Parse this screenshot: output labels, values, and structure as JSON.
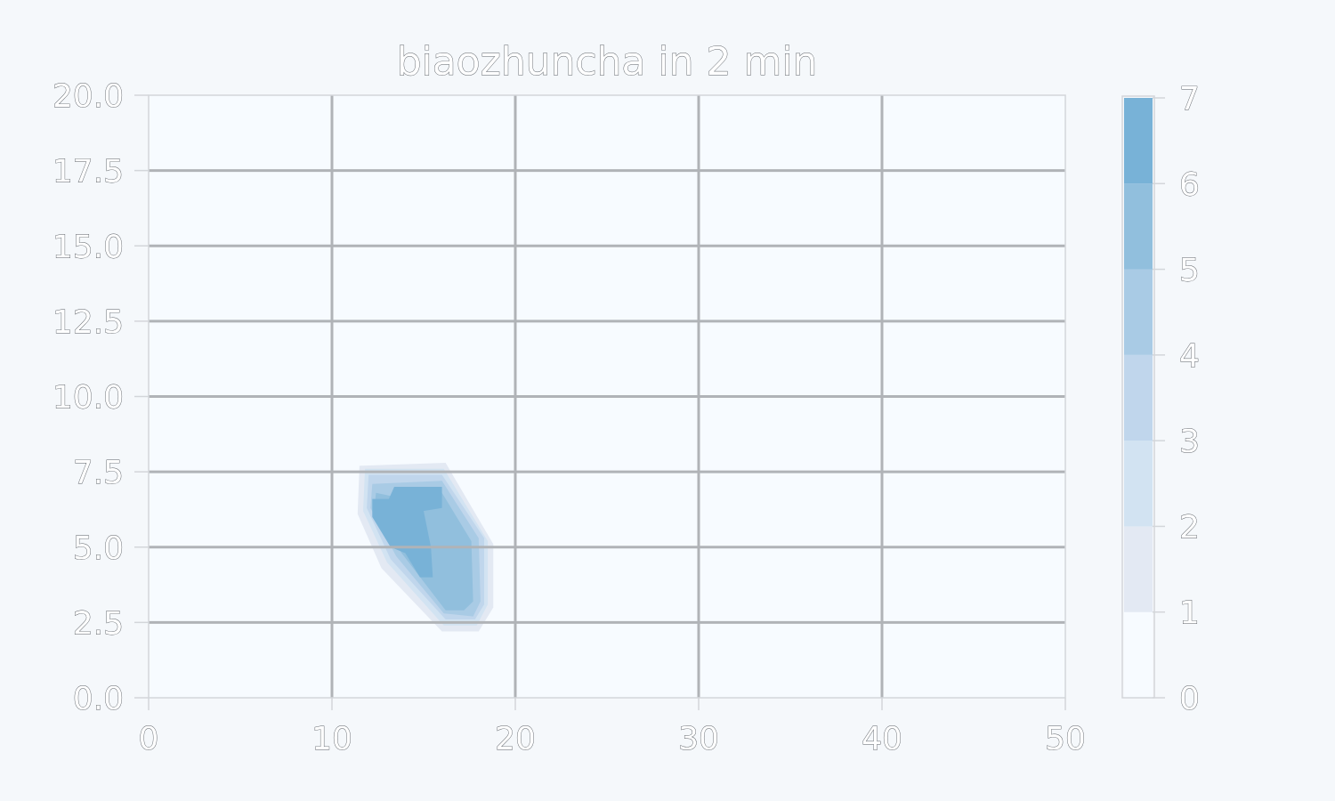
{
  "chart_data": {
    "type": "contour",
    "title": "biaozhuncha in 2 min",
    "xlabel": "",
    "ylabel": "",
    "xlim": [
      0,
      50
    ],
    "ylim": [
      0,
      20
    ],
    "x_ticks": [
      "0",
      "10",
      "20",
      "30",
      "40",
      "50"
    ],
    "y_ticks": [
      "0.0",
      "2.5",
      "5.0",
      "7.5",
      "10.0",
      "12.5",
      "15.0",
      "17.5",
      "20.0"
    ],
    "grid": true,
    "colorbar": {
      "ticks": [
        "0",
        "1",
        "2",
        "3",
        "4",
        "5",
        "6",
        "7"
      ],
      "levels": [
        0,
        1,
        2,
        3,
        4,
        5,
        6,
        7
      ],
      "colors": [
        "#f7fbff",
        "#e3e9f3",
        "#d2e3f2",
        "#c0d6ec",
        "#a9cbe5",
        "#91bfdd",
        "#78b2d7"
      ]
    },
    "regions": [
      {
        "level": 1,
        "points": [
          [
            11.5,
            7.7
          ],
          [
            16.2,
            7.8
          ],
          [
            18.8,
            5.1
          ],
          [
            18.8,
            3.0
          ],
          [
            18.0,
            2.2
          ],
          [
            16.0,
            2.2
          ],
          [
            12.7,
            4.3
          ],
          [
            11.4,
            6.1
          ]
        ]
      },
      {
        "level": 2,
        "points": [
          [
            11.8,
            7.6
          ],
          [
            16.1,
            7.6
          ],
          [
            18.5,
            5.2
          ],
          [
            18.5,
            3.1
          ],
          [
            17.9,
            2.4
          ],
          [
            16.1,
            2.4
          ],
          [
            13.0,
            4.5
          ],
          [
            11.7,
            6.2
          ]
        ]
      },
      {
        "level": 3,
        "points": [
          [
            12.0,
            7.4
          ],
          [
            16.0,
            7.4
          ],
          [
            18.3,
            5.3
          ],
          [
            18.3,
            3.1
          ],
          [
            17.8,
            2.6
          ],
          [
            16.2,
            2.6
          ],
          [
            13.2,
            4.6
          ],
          [
            11.9,
            6.3
          ]
        ]
      },
      {
        "level": 4,
        "points": [
          [
            12.2,
            7.1
          ],
          [
            16.0,
            7.2
          ],
          [
            18.0,
            5.3
          ],
          [
            18.1,
            3.2
          ],
          [
            17.7,
            2.7
          ],
          [
            16.1,
            2.8
          ],
          [
            13.5,
            4.7
          ],
          [
            12.1,
            6.3
          ]
        ]
      },
      {
        "level": 5,
        "points": [
          [
            12.4,
            6.8
          ],
          [
            13.2,
            6.7
          ],
          [
            13.4,
            7.0
          ],
          [
            15.8,
            7.0
          ],
          [
            17.6,
            5.2
          ],
          [
            17.7,
            3.2
          ],
          [
            17.2,
            2.9
          ],
          [
            16.2,
            2.9
          ],
          [
            13.8,
            4.8
          ],
          [
            12.3,
            6.2
          ]
        ]
      },
      {
        "level": 6,
        "points": [
          [
            12.2,
            6.6
          ],
          [
            13.1,
            6.6
          ],
          [
            13.4,
            7.0
          ],
          [
            16.0,
            7.0
          ],
          [
            16.0,
            6.3
          ],
          [
            15.0,
            6.2
          ],
          [
            15.4,
            5.0
          ],
          [
            15.5,
            4.0
          ],
          [
            14.8,
            4.0
          ],
          [
            14.0,
            4.8
          ],
          [
            13.2,
            5.0
          ],
          [
            12.2,
            6.0
          ]
        ]
      }
    ]
  }
}
